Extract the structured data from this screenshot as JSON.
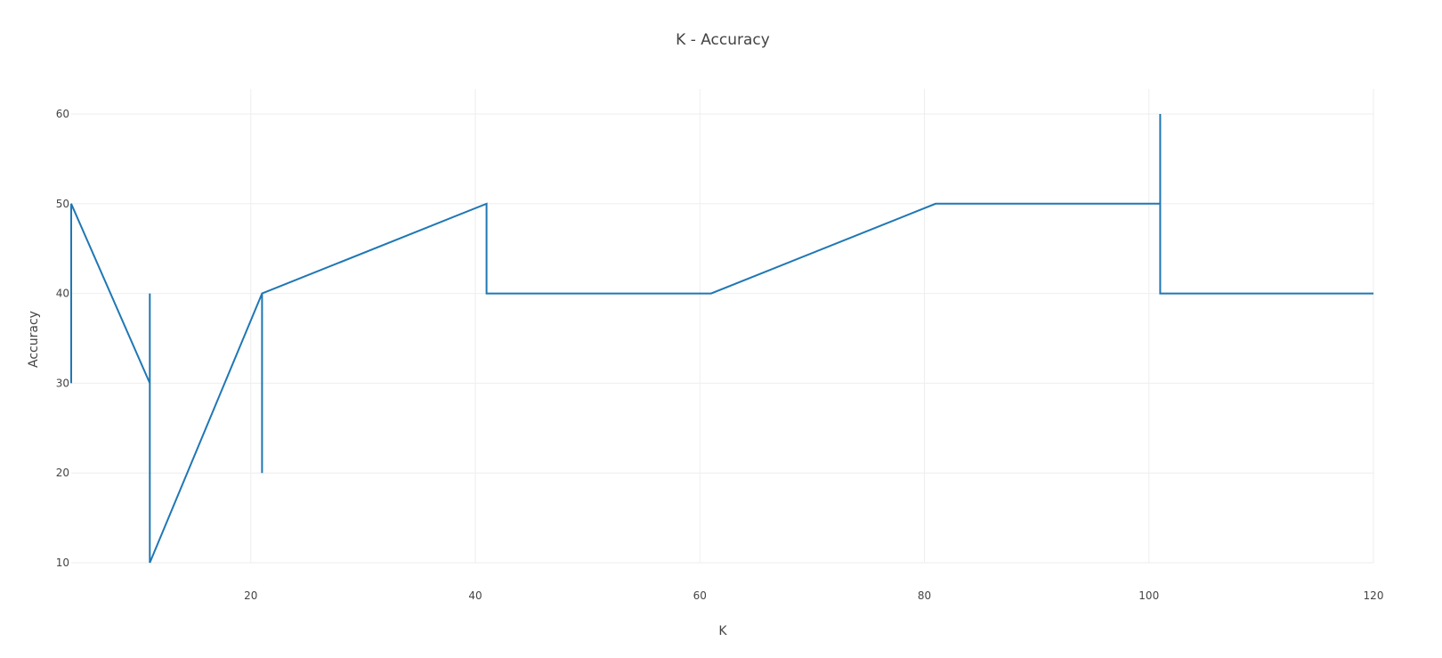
{
  "chart_data": {
    "type": "line",
    "title": "K - Accuracy",
    "xlabel": "K",
    "ylabel": "Accuracy",
    "xlim": [
      4,
      120
    ],
    "ylim": [
      10,
      60
    ],
    "xticks": [
      20,
      40,
      60,
      80,
      100,
      120
    ],
    "yticks": [
      10,
      20,
      30,
      40,
      50,
      60
    ],
    "grid": true,
    "legend": "none",
    "series": [
      {
        "color": "#1f77b4",
        "x": [
          4,
          4,
          11,
          11,
          11,
          11,
          21,
          21,
          21,
          41,
          41,
          61,
          81,
          101,
          101,
          101,
          120
        ],
        "y": [
          30,
          50,
          30,
          40,
          20,
          10,
          40,
          20,
          40,
          50,
          40,
          40,
          50,
          50,
          60,
          40,
          40
        ]
      }
    ]
  }
}
